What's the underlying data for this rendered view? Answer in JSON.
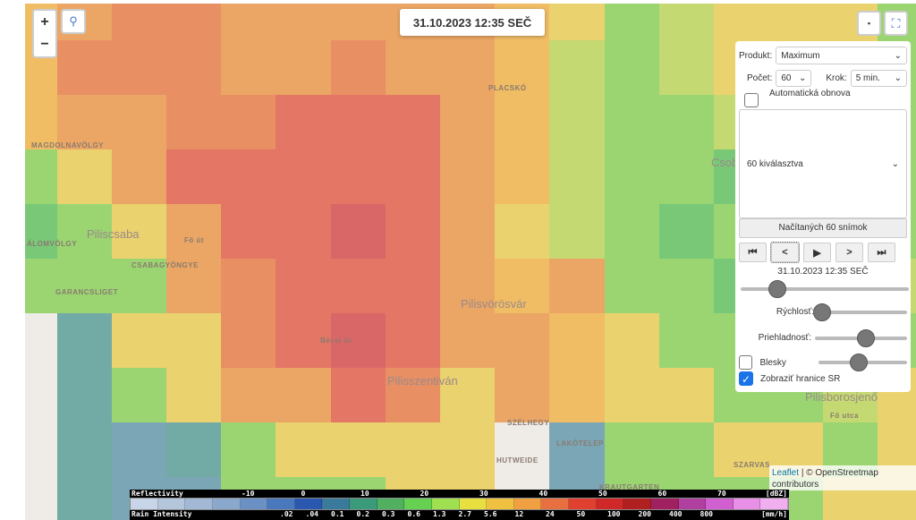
{
  "map": {
    "palette": {
      "o": "#eaa25e",
      "O": "#e78a5c",
      "r": "#e2705e",
      "R": "#d86060",
      "y": "#e9d168",
      "Y": "#efbb5e",
      "l": "#c2d86c",
      "g": "#96d46c",
      "G": "#72c672",
      "t": "#6aa6a2",
      "b": "#74a2b2",
      "w": "#eeece8"
    },
    "grid": [
      "YoOOoooooYyglyyyg",
      "YOOOooOooYlglyyyg",
      "YooOOrrroYlgglyyg",
      "gyorrrrroYlggGglg",
      "GgyorrRroylgGgGgg",
      "gggoOrrroYoggGGgl",
      "wtyyOrRrooYyggGgg",
      "wtgyoorOyoYyyggly",
      "wtbtgyyyywbggyygy",
      "wtbbgggyywbggggyy"
    ],
    "labels": [
      {
        "text": "MAGDOLNAVÖLGY",
        "big": false
      },
      {
        "text": "Piliscsaba",
        "big": true
      },
      {
        "text": "ÁLOMVÖLGY",
        "big": false
      },
      {
        "text": "CSABAGYÖNGYE",
        "big": false
      },
      {
        "text": "GARANCSLIGET",
        "big": false
      },
      {
        "text": "Pilisvörösvár",
        "big": true
      },
      {
        "text": "Pilisszentiván",
        "big": true
      },
      {
        "text": "SZÉLHEGY",
        "big": false
      },
      {
        "text": "HUTWEIDE",
        "big": false
      },
      {
        "text": "LAKÓTELEP",
        "big": false
      },
      {
        "text": "KRAUTGARTEN",
        "big": false
      },
      {
        "text": "SZARVAS",
        "big": false
      },
      {
        "text": "PLACSKÓ",
        "big": false
      },
      {
        "text": "Csob",
        "big": true
      },
      {
        "text": "Pilisborosjenő",
        "big": true
      },
      {
        "text": "Fő út",
        "big": false
      },
      {
        "text": "Bécsi út",
        "big": false
      },
      {
        "text": "Fő utca",
        "big": false
      }
    ]
  },
  "controls": {
    "zoom_in": "+",
    "zoom_out": "−",
    "search_icon": "search-icon",
    "layers": "▪",
    "fullscreen": "⛶"
  },
  "datetime": "31.10.2023 12:35 SEČ",
  "panel": {
    "produkt_label": "Produkt:",
    "produkt_value": "Maximum",
    "pocet_label": "Počet:",
    "pocet_value": "60",
    "krok_label": "Krok:",
    "krok_value": "5 min.",
    "auto_label": "Automatická obnova",
    "auto_checked": false,
    "list_value": "60 kiválasztva",
    "loaded_label": "Načítaných 60 snímok",
    "play": {
      "first": "⏮",
      "prev": "<",
      "play": "▶",
      "next": ">",
      "last": "⏭"
    },
    "frame_time": "31.10.2023 12:35 SEČ",
    "frame_position": 0.22,
    "speed_label": "Rýchlosť:",
    "speed_value": 0.05,
    "opacity_label": "Priehladnosť:",
    "opacity_value": 0.55,
    "blesky_label": "Blesky",
    "blesky_checked": false,
    "blesky_value": 0.45,
    "border_label": "Zobraziť hranice SR",
    "border_checked": true
  },
  "attribution": {
    "leaflet": "Leaflet",
    "rest": "| © OpenStreetmap contributors"
  },
  "legend": {
    "refl_label": "Reflectivity",
    "refl_unit": "[dBZ]",
    "refl_ticks": [
      "-10",
      "0",
      "10",
      "20",
      "30",
      "40",
      "50",
      "60",
      "70"
    ],
    "rain_label": "Rain Intensity",
    "rain_unit": "[mm/h]",
    "rain_ticks": [
      ".02",
      ".04",
      "0.1",
      "0.2",
      "0.3",
      "0.6",
      "1.3",
      "2.7",
      "5.6",
      "12",
      "24",
      "50",
      "100",
      "200",
      "400",
      "800"
    ],
    "colors": [
      "#c8d4e8",
      "#b4c6dc",
      "#a2b8d4",
      "#8aa8cc",
      "#6a90c4",
      "#4a78bc",
      "#2a58b0",
      "#3a7a9a",
      "#3a9a7a",
      "#50b060",
      "#66d050",
      "#a0e050",
      "#e8e040",
      "#f0c040",
      "#f0a040",
      "#e87040",
      "#e04030",
      "#d02828",
      "#b02020",
      "#a02060",
      "#b040a0",
      "#d060d0",
      "#e890e8",
      "#f0b0f0"
    ]
  }
}
